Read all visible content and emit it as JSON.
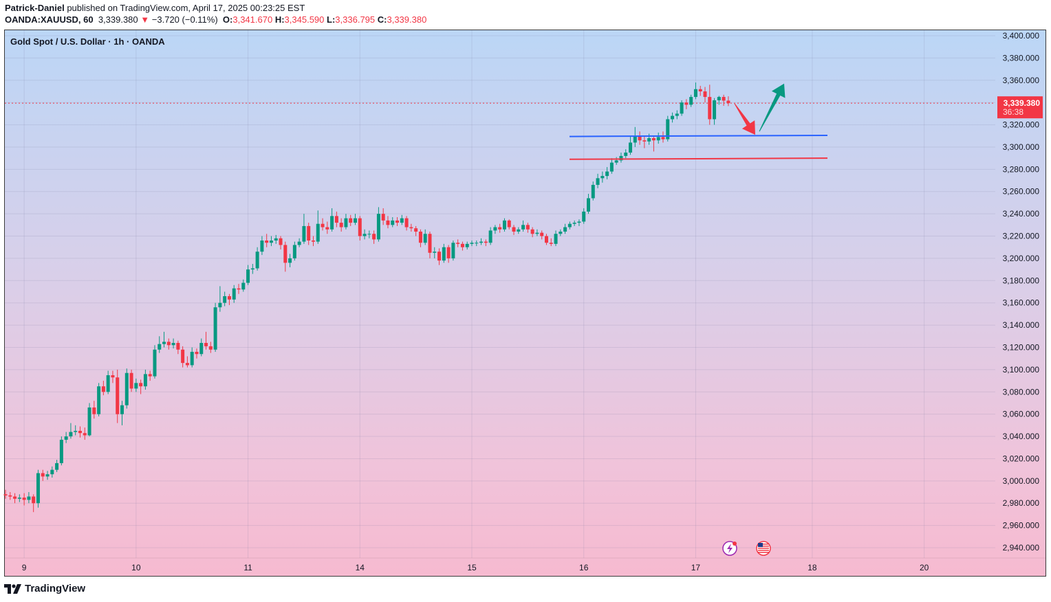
{
  "header": {
    "author": "Patrick-Daniel",
    "published_text": "published on TradingView.com, April 17, 2025 00:23:25 EST",
    "symbol": "OANDA:XAUUSD, 60",
    "last": "3,339.380",
    "change": "−3.720 (−0.11%)",
    "o_label": "O:",
    "o": "3,341.670",
    "h_label": "H:",
    "h": "3,345.590",
    "l_label": "L:",
    "l": "3,336.795",
    "c_label": "C:",
    "c": "3,339.380"
  },
  "legend": "Gold Spot / U.S. Dollar · 1h · OANDA",
  "price_label": {
    "price": "3,339.380",
    "countdown": "36:38"
  },
  "footer": {
    "brand": "TradingView"
  },
  "colors": {
    "up": "#089981",
    "down": "#f23645",
    "support_line": "#2962ff",
    "resistance_line": "#f23645",
    "arrow_up": "#089981",
    "arrow_down": "#f23645"
  },
  "icons": [
    "lightning-event-icon",
    "us-flag-event-icon"
  ],
  "chart_data": {
    "type": "candlestick",
    "title": "Gold Spot / U.S. Dollar · 1h · OANDA",
    "ylim": [
      2930,
      3405
    ],
    "y_ticks": [
      2940,
      2960,
      2980,
      3000,
      3020,
      3040,
      3060,
      3080,
      3100,
      3120,
      3140,
      3160,
      3180,
      3200,
      3220,
      3240,
      3260,
      3280,
      3300,
      3320,
      3340,
      3360,
      3380,
      3400
    ],
    "y_tick_labels": [
      "2,940.000",
      "2,960.000",
      "2,980.000",
      "3,000.000",
      "3,020.000",
      "3,040.000",
      "3,060.000",
      "3,080.000",
      "3,100.000",
      "3,120.000",
      "3,140.000",
      "3,160.000",
      "3,180.000",
      "3,200.000",
      "3,220.000",
      "3,240.000",
      "3,260.000",
      "3,280.000",
      "3,300.000",
      "3,320.000",
      "3,340.000",
      "3,360.000",
      "3,380.000",
      "3,400.000"
    ],
    "x_tick_labels": [
      "9",
      "10",
      "11",
      "14",
      "15",
      "16",
      "17",
      "18",
      "20"
    ],
    "grid": true,
    "last_price": 3339.38,
    "horizontal_lines": [
      {
        "color": "blue",
        "from_price": 3309.5,
        "to_price": 3310.5
      },
      {
        "color": "red",
        "from_price": 3289,
        "to_price": 3290
      }
    ],
    "arrows": [
      {
        "direction": "down",
        "color": "red",
        "from_price": 3339,
        "to_price": 3311
      },
      {
        "direction": "up",
        "color": "green",
        "from_price": 3314,
        "to_price": 3357
      }
    ],
    "candles": [
      [
        2988,
        2992,
        2984,
        2987
      ],
      [
        2987,
        2990,
        2983,
        2986
      ],
      [
        2986,
        2989,
        2980,
        2984
      ],
      [
        2984,
        2988,
        2981,
        2985
      ],
      [
        2985,
        2989,
        2978,
        2983
      ],
      [
        2983,
        2990,
        2980,
        2986
      ],
      [
        2986,
        2988,
        2972,
        2980
      ],
      [
        2980,
        3010,
        2976,
        3007
      ],
      [
        3007,
        3010,
        3000,
        3004
      ],
      [
        3004,
        3009,
        3001,
        3006
      ],
      [
        3006,
        3013,
        3003,
        3010
      ],
      [
        3010,
        3019,
        3008,
        3016
      ],
      [
        3016,
        3040,
        3014,
        3037
      ],
      [
        3037,
        3044,
        3034,
        3040
      ],
      [
        3040,
        3052,
        3038,
        3044
      ],
      [
        3044,
        3050,
        3041,
        3045
      ],
      [
        3045,
        3049,
        3039,
        3043
      ],
      [
        3043,
        3048,
        3037,
        3041
      ],
      [
        3041,
        3070,
        3040,
        3066
      ],
      [
        3066,
        3072,
        3056,
        3060
      ],
      [
        3060,
        3088,
        3058,
        3085
      ],
      [
        3085,
        3090,
        3077,
        3080
      ],
      [
        3080,
        3099,
        3078,
        3095
      ],
      [
        3095,
        3099,
        3088,
        3093
      ],
      [
        3093,
        3100,
        3052,
        3060
      ],
      [
        3060,
        3072,
        3050,
        3068
      ],
      [
        3068,
        3101,
        3065,
        3097
      ],
      [
        3097,
        3100,
        3080,
        3083
      ],
      [
        3083,
        3092,
        3080,
        3088
      ],
      [
        3088,
        3091,
        3078,
        3085
      ],
      [
        3085,
        3100,
        3082,
        3096
      ],
      [
        3096,
        3099,
        3090,
        3094
      ],
      [
        3094,
        3122,
        3092,
        3118
      ],
      [
        3118,
        3130,
        3115,
        3123
      ],
      [
        3123,
        3134,
        3120,
        3125
      ],
      [
        3125,
        3128,
        3118,
        3122
      ],
      [
        3122,
        3128,
        3119,
        3124
      ],
      [
        3124,
        3126,
        3114,
        3118
      ],
      [
        3118,
        3121,
        3102,
        3106
      ],
      [
        3106,
        3112,
        3102,
        3104
      ],
      [
        3104,
        3120,
        3102,
        3116
      ],
      [
        3116,
        3119,
        3110,
        3114
      ],
      [
        3114,
        3128,
        3112,
        3124
      ],
      [
        3124,
        3134,
        3118,
        3121
      ],
      [
        3121,
        3125,
        3115,
        3118
      ],
      [
        3118,
        3160,
        3116,
        3156
      ],
      [
        3156,
        3175,
        3152,
        3160
      ],
      [
        3160,
        3170,
        3157,
        3166
      ],
      [
        3166,
        3168,
        3158,
        3163
      ],
      [
        3163,
        3176,
        3160,
        3173
      ],
      [
        3173,
        3177,
        3168,
        3172
      ],
      [
        3172,
        3181,
        3170,
        3178
      ],
      [
        3178,
        3194,
        3176,
        3190
      ],
      [
        3190,
        3195,
        3186,
        3191
      ],
      [
        3191,
        3210,
        3189,
        3206
      ],
      [
        3206,
        3220,
        3203,
        3216
      ],
      [
        3216,
        3222,
        3210,
        3214
      ],
      [
        3214,
        3220,
        3211,
        3216
      ],
      [
        3216,
        3221,
        3213,
        3218
      ],
      [
        3218,
        3220,
        3208,
        3212
      ],
      [
        3212,
        3215,
        3188,
        3196
      ],
      [
        3196,
        3204,
        3192,
        3200
      ],
      [
        3200,
        3215,
        3198,
        3212
      ],
      [
        3212,
        3218,
        3210,
        3215
      ],
      [
        3215,
        3240,
        3213,
        3229
      ],
      [
        3229,
        3232,
        3212,
        3216
      ],
      [
        3216,
        3220,
        3211,
        3215
      ],
      [
        3215,
        3243,
        3213,
        3231
      ],
      [
        3231,
        3236,
        3225,
        3228
      ],
      [
        3228,
        3233,
        3222,
        3226
      ],
      [
        3226,
        3245,
        3224,
        3238
      ],
      [
        3238,
        3242,
        3228,
        3232
      ],
      [
        3232,
        3236,
        3224,
        3228
      ],
      [
        3228,
        3240,
        3226,
        3236
      ],
      [
        3236,
        3239,
        3229,
        3232
      ],
      [
        3232,
        3240,
        3230,
        3236
      ],
      [
        3236,
        3238,
        3216,
        3220
      ],
      [
        3220,
        3226,
        3217,
        3222
      ],
      [
        3222,
        3225,
        3218,
        3222
      ],
      [
        3222,
        3225,
        3213,
        3217
      ],
      [
        3217,
        3246,
        3215,
        3240
      ],
      [
        3240,
        3245,
        3230,
        3234
      ],
      [
        3234,
        3238,
        3227,
        3230
      ],
      [
        3230,
        3237,
        3228,
        3234
      ],
      [
        3234,
        3237,
        3229,
        3232
      ],
      [
        3232,
        3239,
        3230,
        3236
      ],
      [
        3236,
        3238,
        3225,
        3228
      ],
      [
        3228,
        3231,
        3224,
        3227
      ],
      [
        3227,
        3229,
        3220,
        3224
      ],
      [
        3224,
        3226,
        3210,
        3214
      ],
      [
        3214,
        3226,
        3212,
        3222
      ],
      [
        3222,
        3224,
        3200,
        3205
      ],
      [
        3205,
        3210,
        3200,
        3206
      ],
      [
        3206,
        3209,
        3194,
        3198
      ],
      [
        3198,
        3213,
        3196,
        3210
      ],
      [
        3210,
        3212,
        3196,
        3200
      ],
      [
        3200,
        3216,
        3198,
        3214
      ],
      [
        3214,
        3217,
        3210,
        3213
      ],
      [
        3213,
        3215,
        3207,
        3210
      ],
      [
        3210,
        3215,
        3208,
        3213
      ],
      [
        3213,
        3216,
        3211,
        3214
      ],
      [
        3214,
        3216,
        3211,
        3214
      ],
      [
        3214,
        3218,
        3212,
        3215
      ],
      [
        3215,
        3217,
        3211,
        3214
      ],
      [
        3214,
        3228,
        3212,
        3225
      ],
      [
        3225,
        3230,
        3222,
        3228
      ],
      [
        3228,
        3231,
        3223,
        3226
      ],
      [
        3226,
        3236,
        3224,
        3234
      ],
      [
        3234,
        3235,
        3226,
        3228
      ],
      [
        3228,
        3230,
        3221,
        3224
      ],
      [
        3224,
        3228,
        3222,
        3226
      ],
      [
        3226,
        3234,
        3224,
        3230
      ],
      [
        3230,
        3232,
        3223,
        3226
      ],
      [
        3226,
        3228,
        3219,
        3222
      ],
      [
        3222,
        3226,
        3220,
        3223
      ],
      [
        3223,
        3225,
        3217,
        3220
      ],
      [
        3220,
        3222,
        3212,
        3214
      ],
      [
        3214,
        3218,
        3211,
        3213
      ],
      [
        3213,
        3225,
        3211,
        3222
      ],
      [
        3222,
        3226,
        3220,
        3224
      ],
      [
        3224,
        3231,
        3222,
        3228
      ],
      [
        3228,
        3233,
        3226,
        3231
      ],
      [
        3231,
        3234,
        3229,
        3232
      ],
      [
        3232,
        3235,
        3229,
        3233
      ],
      [
        3233,
        3245,
        3231,
        3242
      ],
      [
        3242,
        3258,
        3240,
        3254
      ],
      [
        3254,
        3269,
        3252,
        3266
      ],
      [
        3266,
        3276,
        3263,
        3272
      ],
      [
        3272,
        3278,
        3268,
        3274
      ],
      [
        3274,
        3282,
        3271,
        3278
      ],
      [
        3278,
        3290,
        3276,
        3286
      ],
      [
        3286,
        3291,
        3284,
        3288
      ],
      [
        3288,
        3295,
        3286,
        3292
      ],
      [
        3292,
        3298,
        3290,
        3295
      ],
      [
        3295,
        3310,
        3293,
        3304
      ],
      [
        3304,
        3318,
        3300,
        3310
      ],
      [
        3310,
        3314,
        3302,
        3306
      ],
      [
        3306,
        3310,
        3299,
        3305
      ],
      [
        3305,
        3312,
        3302,
        3308
      ],
      [
        3308,
        3310,
        3296,
        3306
      ],
      [
        3306,
        3313,
        3303,
        3309
      ],
      [
        3309,
        3314,
        3304,
        3307
      ],
      [
        3307,
        3328,
        3305,
        3325
      ],
      [
        3325,
        3331,
        3322,
        3328
      ],
      [
        3328,
        3333,
        3325,
        3330
      ],
      [
        3330,
        3342,
        3328,
        3340
      ],
      [
        3340,
        3343,
        3334,
        3338
      ],
      [
        3338,
        3347,
        3336,
        3345
      ],
      [
        3345,
        3358,
        3343,
        3352
      ],
      [
        3352,
        3355,
        3346,
        3350
      ],
      [
        3350,
        3354,
        3340,
        3345
      ],
      [
        3345,
        3356,
        3320,
        3325
      ],
      [
        3325,
        3344,
        3320,
        3342
      ],
      [
        3342,
        3346,
        3338,
        3345
      ],
      [
        3345,
        3347,
        3337,
        3341.67
      ],
      [
        3341.67,
        3345.59,
        3336.795,
        3339.38
      ]
    ]
  }
}
